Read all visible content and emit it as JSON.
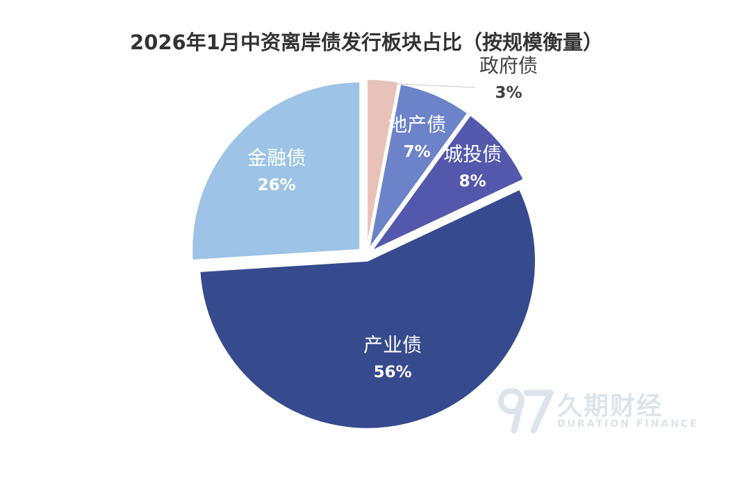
{
  "chart_data": {
    "type": "pie",
    "title": "2026年1月中资离岸债发行板块占比（按规模衡量）",
    "slices": [
      {
        "label": "政府债",
        "value": 3,
        "display": "3%",
        "color": "#e8c2b8",
        "text_color": "#404040"
      },
      {
        "label": "地产债",
        "value": 7,
        "display": "7%",
        "color": "#6c83c9",
        "text_color": "#ffffff"
      },
      {
        "label": "城投债",
        "value": 8,
        "display": "8%",
        "color": "#5358ad",
        "text_color": "#ffffff"
      },
      {
        "label": "产业债",
        "value": 56,
        "display": "56%",
        "color": "#364a8e",
        "text_color": "#ffffff"
      },
      {
        "label": "金融债",
        "value": 26,
        "display": "26%",
        "color": "#9dc3e6",
        "text_color": "#ffffff"
      }
    ],
    "start_angle": "12 o'clock",
    "direction": "clockwise",
    "exploded": true,
    "legend": "none"
  },
  "watermark": {
    "logo": "97-logo-icon",
    "name": "久期财经",
    "subtitle": "DURATION FINANCE"
  }
}
